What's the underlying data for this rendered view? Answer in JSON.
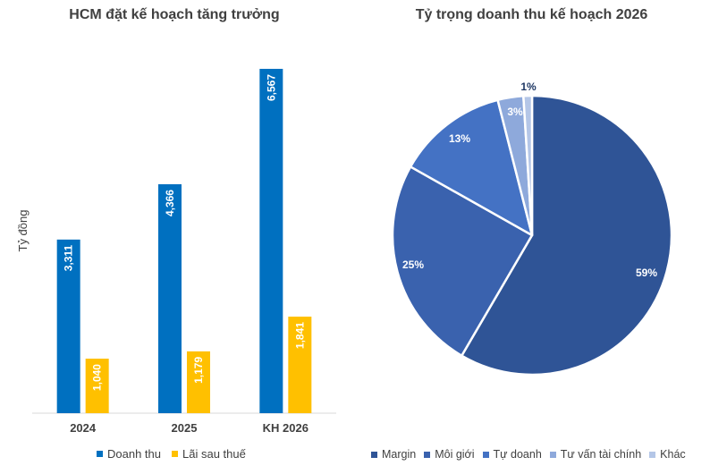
{
  "chart_data": [
    {
      "type": "bar",
      "title": "HCM đặt kế hoạch tăng trưởng",
      "ylabel": "Tỷ đồng",
      "xlabel": "",
      "categories": [
        "2024",
        "2025",
        "KH 2026"
      ],
      "series": [
        {
          "name": "Doanh thu",
          "color": "#0070C0",
          "values": [
            3311,
            4366,
            6567
          ],
          "labels": [
            "3,311",
            "4,366",
            "6,567"
          ]
        },
        {
          "name": "Lãi sau thuế",
          "color": "#FFC000",
          "values": [
            1040,
            1179,
            1841
          ],
          "labels": [
            "1,040",
            "1,179",
            "1,841"
          ]
        }
      ],
      "ylim": [
        0,
        7300
      ],
      "grid": false,
      "legend": "bottom"
    },
    {
      "type": "pie",
      "title": "Tỷ trọng doanh thu kế hoạch 2026",
      "slices": [
        {
          "name": "Margin",
          "value": 59,
          "label": "59%",
          "color": "#2F5496"
        },
        {
          "name": "Môi giới",
          "value": 25,
          "label": "25%",
          "color": "#3A62AE"
        },
        {
          "name": "Tự doanh",
          "value": 13,
          "label": "13%",
          "color": "#4472C4"
        },
        {
          "name": "Tư vấn tài chính",
          "value": 3,
          "label": "3%",
          "color": "#8EA9DB"
        },
        {
          "name": "Khác",
          "value": 1,
          "label": "1%",
          "color": "#B4C6E7"
        }
      ],
      "legend": "bottom"
    }
  ]
}
